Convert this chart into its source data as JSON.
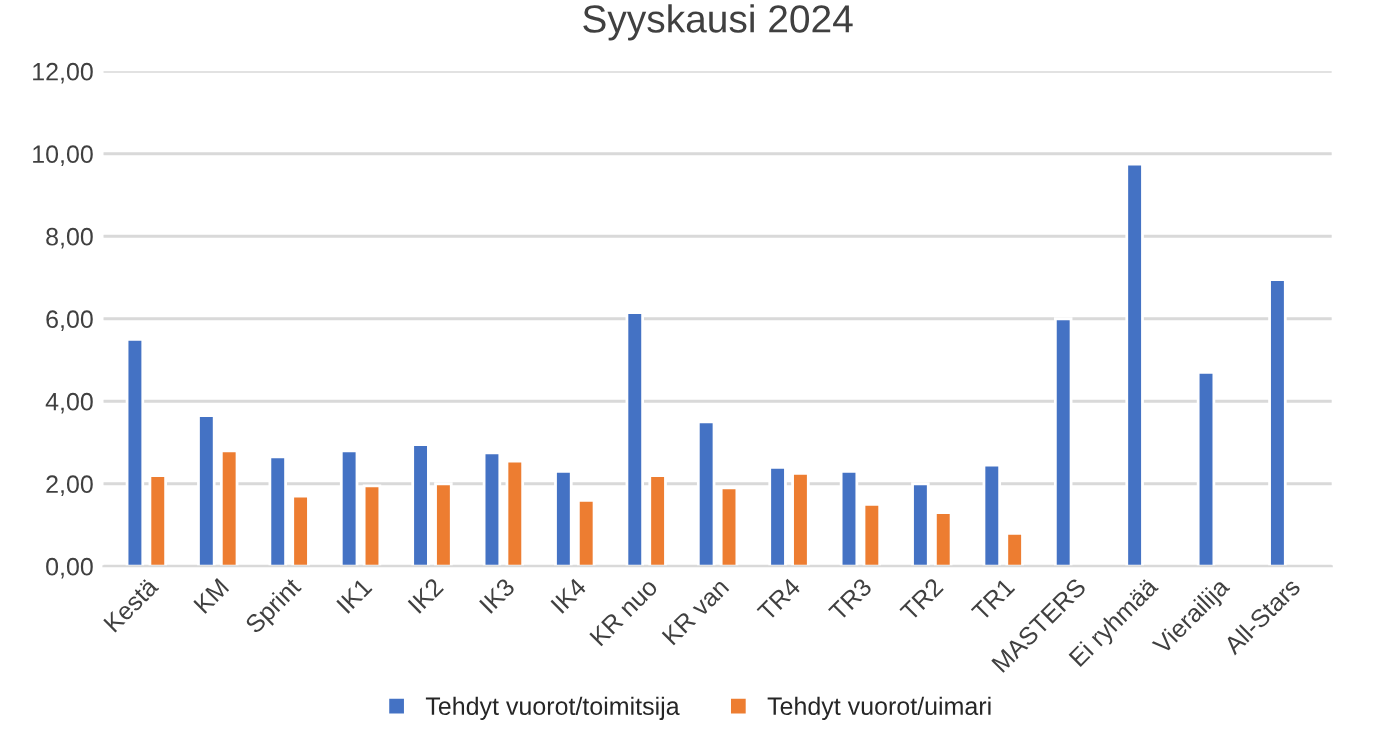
{
  "chart_data": {
    "type": "bar",
    "title": "Syyskausi 2024",
    "categories": [
      "Kestä",
      "KM",
      "Sprint",
      "IK1",
      "IK2",
      "IK3",
      "IK4",
      "KR nuo",
      "KR van",
      "TR4",
      "TR3",
      "TR2",
      "TR1",
      "MASTERS",
      "Ei ryhmää",
      "Vierailija",
      "All-Stars"
    ],
    "series": [
      {
        "name": "Tehdyt vuorot/toimitsija",
        "color": "#4472c4",
        "values": [
          5.5,
          3.65,
          2.65,
          2.8,
          2.95,
          2.75,
          2.3,
          6.15,
          3.5,
          2.4,
          2.3,
          2.0,
          2.45,
          6.0,
          9.75,
          4.7,
          6.95
        ]
      },
      {
        "name": "Tehdyt vuorot/uimari",
        "color": "#ed7d31",
        "values": [
          2.2,
          2.8,
          1.7,
          1.95,
          2.0,
          2.55,
          1.6,
          2.2,
          1.9,
          2.25,
          1.5,
          1.3,
          0.8,
          null,
          null,
          null,
          null
        ]
      }
    ],
    "ylim": [
      0,
      12
    ],
    "yticks": [
      {
        "value": 0,
        "label": "0,00"
      },
      {
        "value": 2,
        "label": "2,00"
      },
      {
        "value": 4,
        "label": "4,00"
      },
      {
        "value": 6,
        "label": "6,00"
      },
      {
        "value": 8,
        "label": "8,00"
      },
      {
        "value": 10,
        "label": "10,00"
      },
      {
        "value": 12,
        "label": "12,00"
      }
    ],
    "grid": "y",
    "legend": "bottom"
  }
}
